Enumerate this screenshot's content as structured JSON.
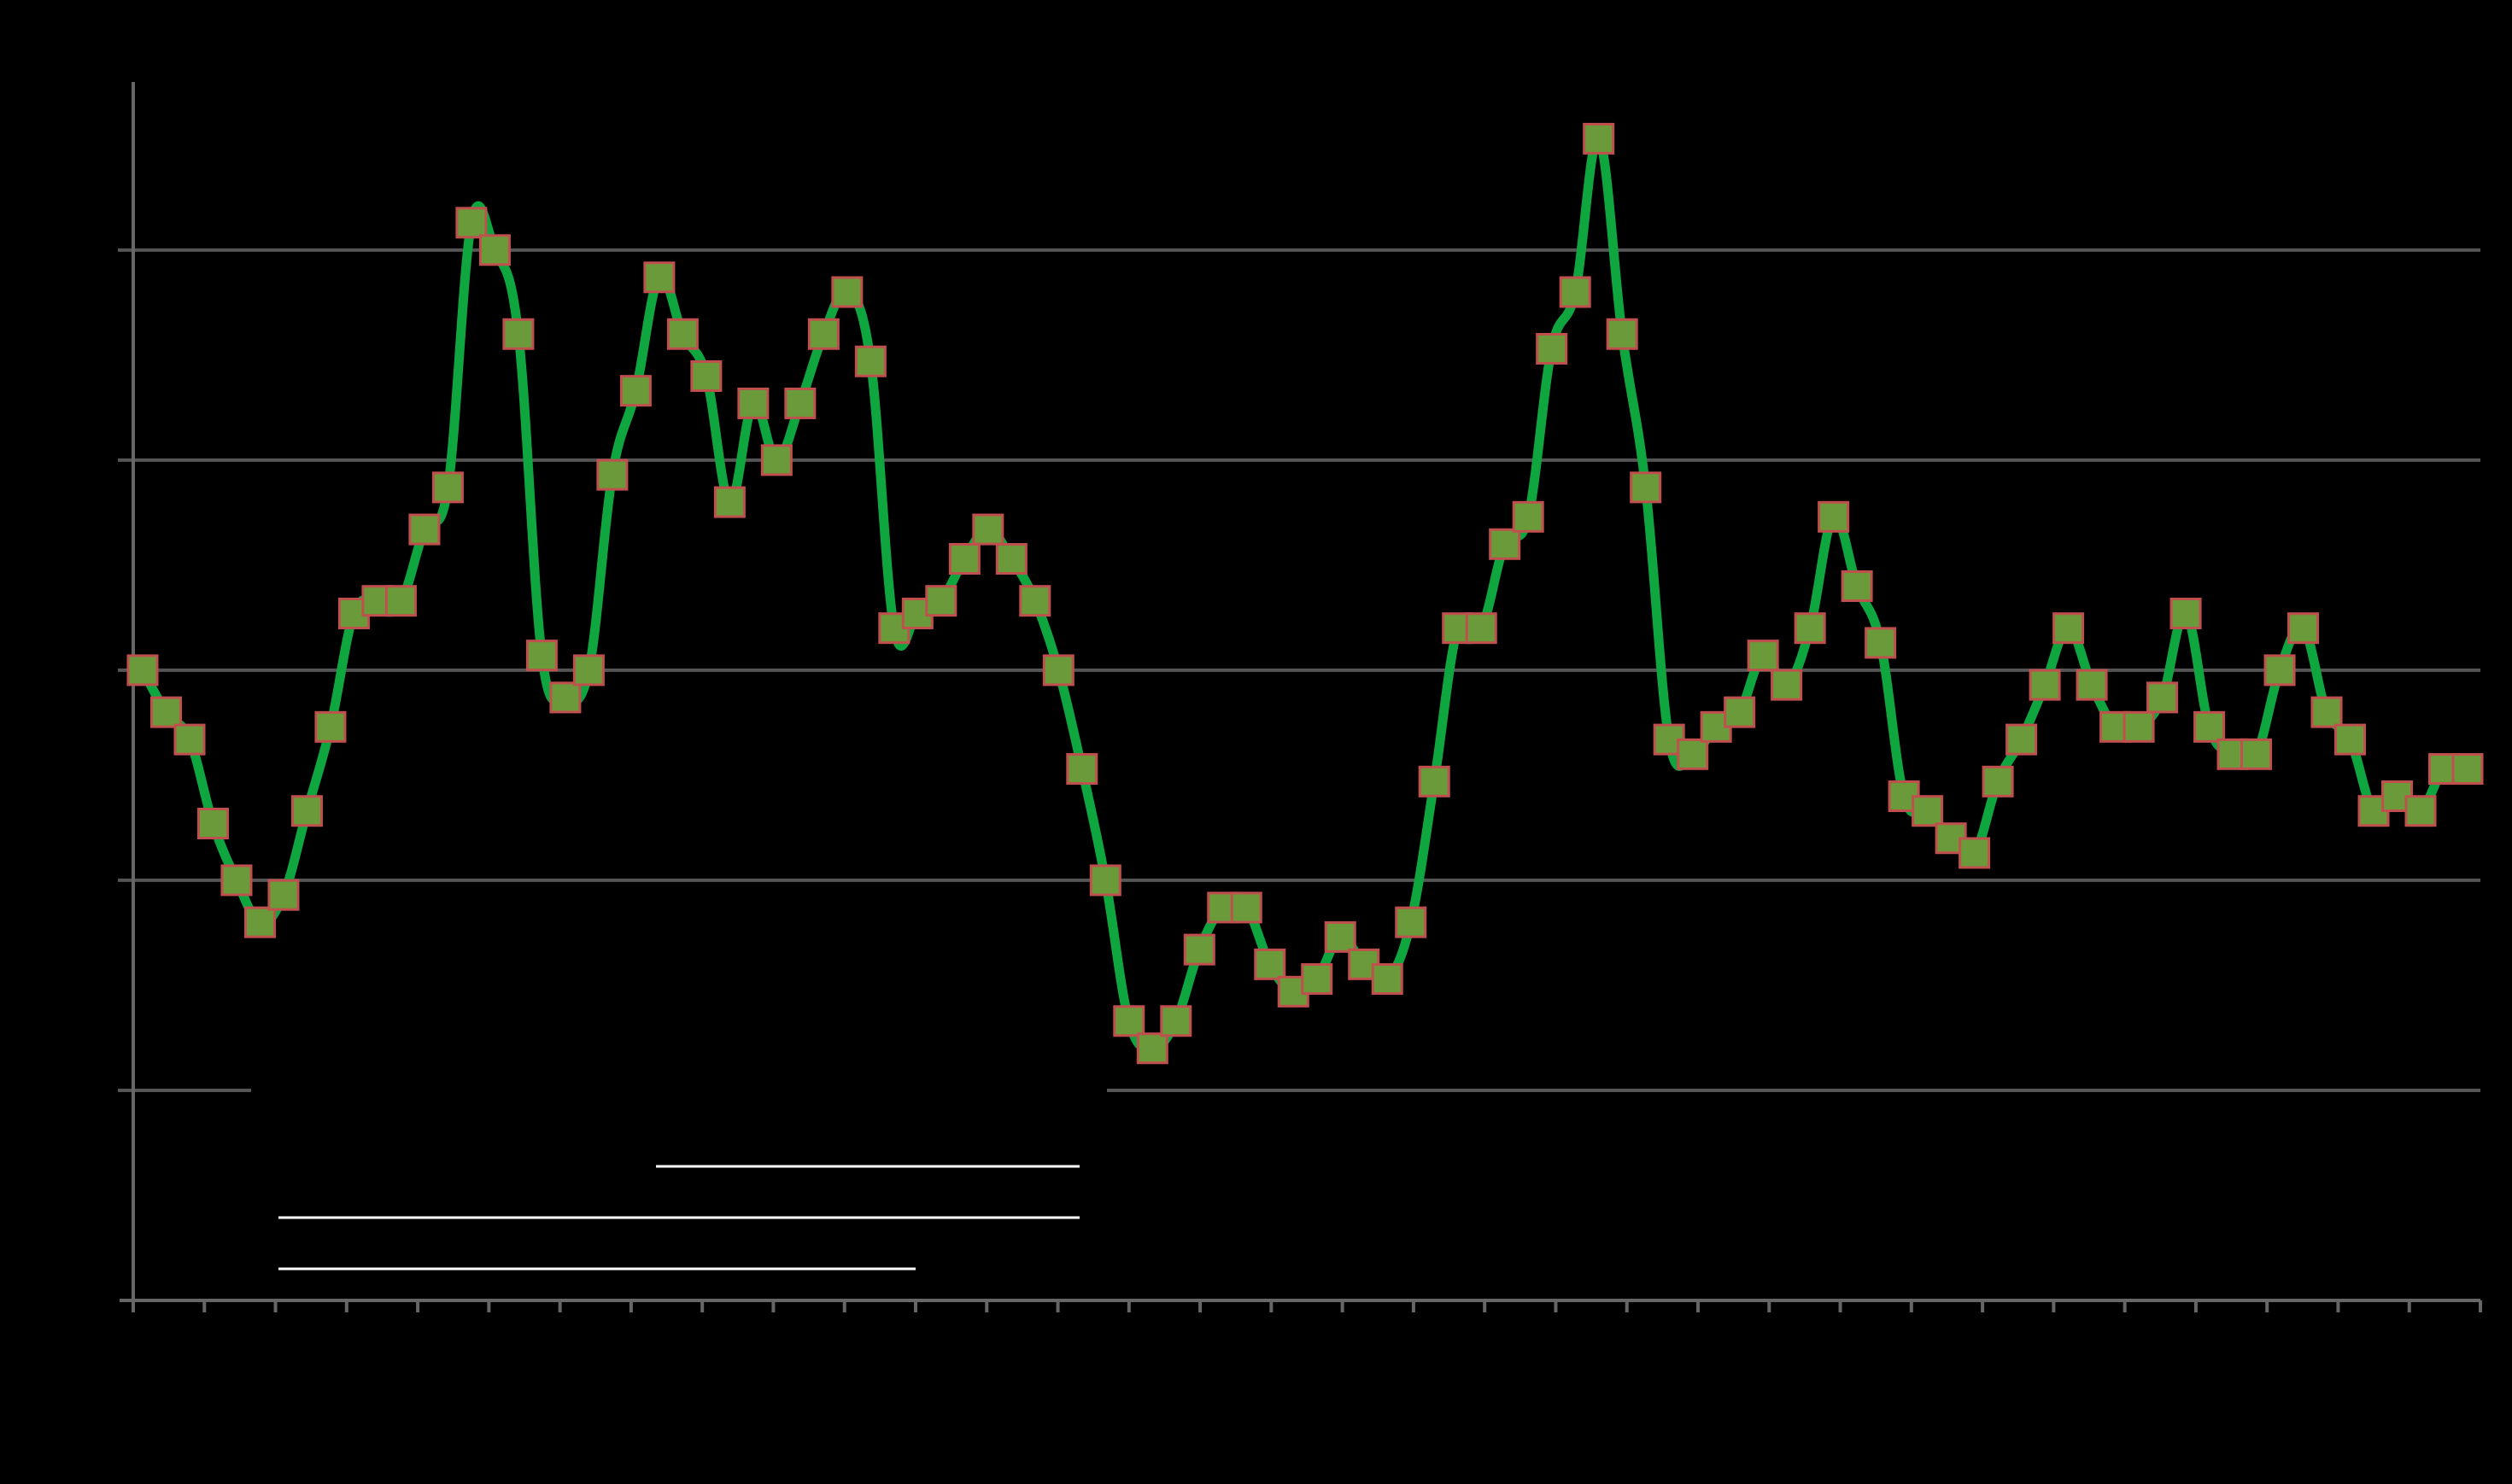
{
  "chart_data": {
    "type": "line",
    "title": "",
    "xlabel": "",
    "ylabel": "",
    "ylim": [
      0,
      5.8
    ],
    "y_gridlines": [
      1,
      2,
      3,
      4,
      5
    ],
    "grid": true,
    "legend": "none",
    "x_tick_count": 33,
    "series": [
      {
        "name": "",
        "color": "#0fa640",
        "marker": "square",
        "marker_fill": "#6a9a3a",
        "marker_edge": "#c0504d",
        "values": [
          3.0,
          2.8,
          2.67,
          2.27,
          2.0,
          1.8,
          1.93,
          2.33,
          2.73,
          3.27,
          3.33,
          3.33,
          3.67,
          3.87,
          5.13,
          5.0,
          4.6,
          3.07,
          2.87,
          3.0,
          3.93,
          4.33,
          4.87,
          4.6,
          4.4,
          3.8,
          4.27,
          4.0,
          4.27,
          4.6,
          4.8,
          4.47,
          3.2,
          3.27,
          3.33,
          3.53,
          3.67,
          3.53,
          3.33,
          3.0,
          2.53,
          2.0,
          1.33,
          1.2,
          1.33,
          1.67,
          1.87,
          1.87,
          1.6,
          1.47,
          1.53,
          1.73,
          1.6,
          1.53,
          1.8,
          2.47,
          3.2,
          3.2,
          3.6,
          3.73,
          4.53,
          4.8,
          5.53,
          4.6,
          3.87,
          2.67,
          2.6,
          2.73,
          2.8,
          3.07,
          2.93,
          3.2,
          3.73,
          3.4,
          3.13,
          2.4,
          2.33,
          2.2,
          2.13,
          2.47,
          2.67,
          2.93,
          3.2,
          2.93,
          2.73,
          2.73,
          2.87,
          3.27,
          2.73,
          2.6,
          2.6,
          3.0,
          3.2,
          2.8,
          2.67,
          2.33,
          2.4,
          2.33,
          2.53,
          2.53
        ]
      }
    ]
  }
}
